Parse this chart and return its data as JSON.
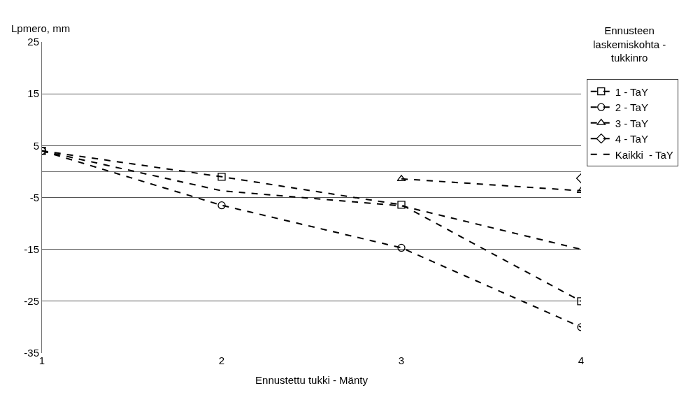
{
  "chart_data": {
    "type": "line",
    "xlabel": "Ennustettu tukki - Mänty",
    "ylabel": "Lpmero, mm",
    "legend_title": "Ennusteen\nlaskemiskohta -\ntukkinro",
    "x": [
      1,
      2,
      3,
      4
    ],
    "xlim": [
      1,
      4
    ],
    "xticks": [
      1,
      2,
      3,
      4
    ],
    "ylim": [
      -35,
      25
    ],
    "yticks": [
      -35,
      -25,
      -15,
      -5,
      5,
      15,
      25
    ],
    "grid": "y",
    "legend": "top right",
    "line_style": "dashed",
    "series": [
      {
        "name": "1 - TaY",
        "color": "#000000",
        "marker": "square",
        "values": [
          4,
          -1,
          -6.4,
          -25
        ]
      },
      {
        "name": "2 - TaY",
        "color": "#000000",
        "marker": "circle",
        "values": [
          4,
          -6.5,
          -14.7,
          -30
        ]
      },
      {
        "name": "3 - TaY",
        "color": "#000000",
        "marker": "triangle",
        "values": [
          null,
          null,
          -1.4,
          -3.7
        ]
      },
      {
        "name": "4 - TaY",
        "color": "#000000",
        "marker": "diamond",
        "values": [
          null,
          null,
          null,
          -1.3
        ]
      },
      {
        "name": "Kaikki  - TaY",
        "color": "#000000",
        "marker": "none",
        "values": [
          4,
          -3.7,
          -6.6,
          -15
        ]
      }
    ]
  }
}
